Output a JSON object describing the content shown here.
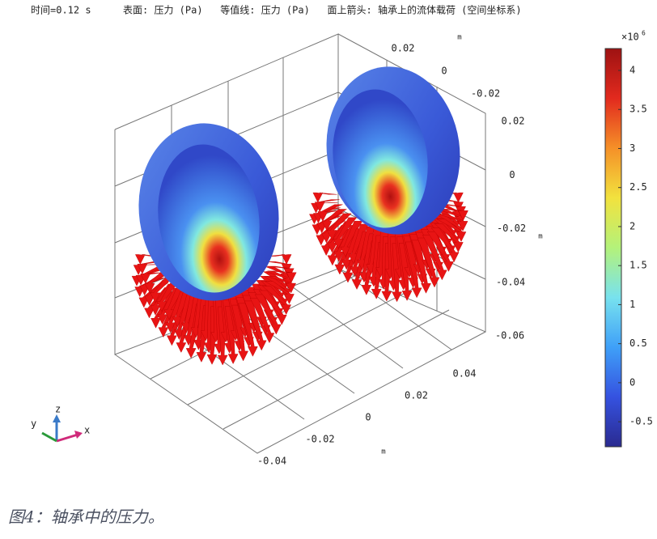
{
  "header": {
    "time": "时间=0.12 s",
    "description": "表面: 压力 (Pa)   等值线: 压力 (Pa)   面上箭头: 轴承上的流体载荷 (空间坐标系)"
  },
  "chart_data": {
    "type": "surface3d",
    "x_axis": {
      "label": "m",
      "ticks": [
        -0.04,
        -0.02,
        0,
        0.02,
        0.04
      ]
    },
    "y_axis": {
      "label": "m",
      "ticks": [
        -0.02,
        0,
        0.02
      ]
    },
    "z_axis": {
      "label": "m",
      "ticks": [
        -0.06,
        -0.04,
        -0.02,
        0,
        0.02
      ]
    },
    "colorbar": {
      "multiplier": "×10",
      "exponent": "6",
      "ylim": [
        -0.82,
        4.28
      ],
      "yticks": [
        -0.5,
        0,
        0.5,
        1,
        1.5,
        2,
        2.5,
        3,
        3.5,
        4
      ],
      "colors": [
        "#2a2a90",
        "#3552e0",
        "#3fa0f8",
        "#78e2ee",
        "#b4f27a",
        "#f2e23e",
        "#f59028",
        "#e22a1e",
        "#9e1212"
      ]
    },
    "triad": {
      "x": "x",
      "y": "y",
      "z": "z"
    }
  },
  "caption": "图4：轴承中的压力。"
}
